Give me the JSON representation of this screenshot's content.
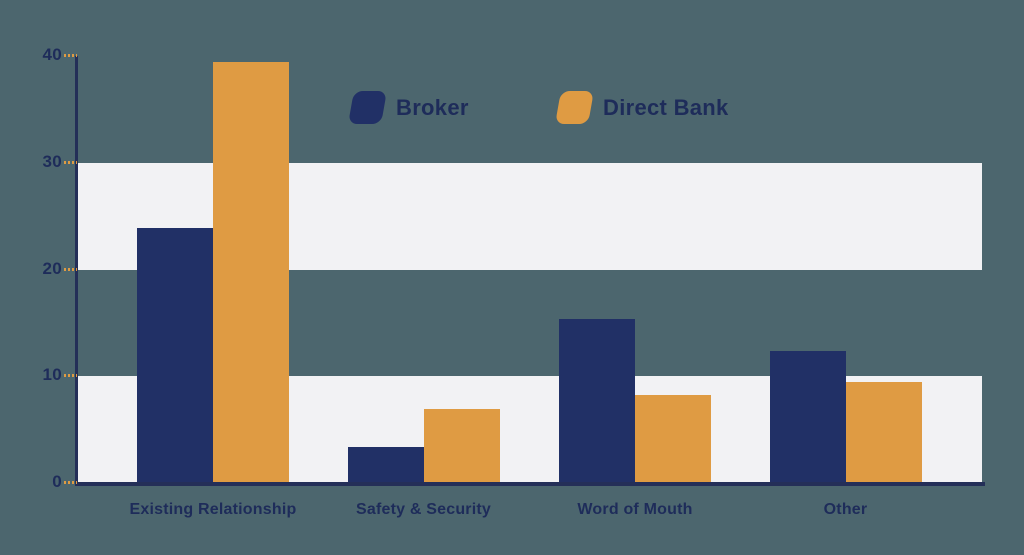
{
  "chart_data": {
    "type": "bar",
    "title": "",
    "xlabel": "",
    "ylabel": "",
    "categories": [
      "Existing Relationship",
      "Safety & Security",
      "Word of Mouth",
      "Other"
    ],
    "series": [
      {
        "name": "Broker",
        "color": "#213066",
        "values": [
          23.9,
          3.4,
          15.4,
          12.4
        ]
      },
      {
        "name": "Direct Bank",
        "color": "#df9b43",
        "values": [
          39.4,
          6.9,
          8.2,
          9.5
        ]
      }
    ],
    "ylim": [
      0,
      40
    ],
    "yticks": [
      0,
      10,
      20,
      30,
      40
    ],
    "grid": "alternating horizontal light bands between 0-10 and 20-30",
    "legend_position": "top-center"
  },
  "colors": {
    "background": "#4c666e",
    "band": "#f2f2f4",
    "axis": "#242f58",
    "label_text": "#1e2c5a",
    "tick_dash": "#df9b43"
  }
}
